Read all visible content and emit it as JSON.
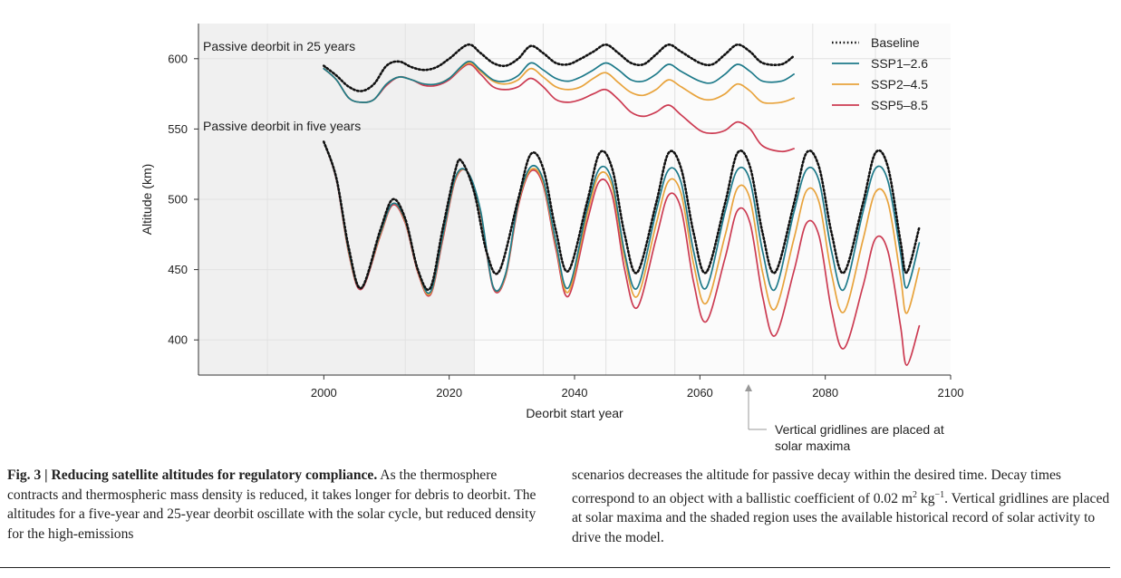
{
  "chart_data": {
    "type": "line",
    "xlabel": "Deorbit start year",
    "ylabel": "Altitude (km)",
    "xlim": [
      1980,
      2100
    ],
    "ylim": [
      375,
      625
    ],
    "xticks": [
      2000,
      2020,
      2040,
      2060,
      2080,
      2100
    ],
    "yticks": [
      400,
      450,
      500,
      550,
      600
    ],
    "shaded_region": [
      1980,
      2024
    ],
    "vertical_gridlines_at": [
      1991,
      2013,
      2024,
      2035,
      2045,
      2056,
      2067,
      2078,
      2088
    ],
    "legend_position": "top-right",
    "annotations": {
      "upper": "Passive deorbit in 25 years",
      "lower": "Passive deorbit in five years",
      "arrow_note_line1": "Vertical gridlines are placed at",
      "arrow_note_line2": "solar maxima"
    },
    "series": [
      {
        "name": "Baseline",
        "color": "#111111",
        "dashed": true,
        "five_year": {
          "x": [
            2000,
            2002,
            2004,
            2006,
            2009,
            2011,
            2013,
            2015,
            2017,
            2019,
            2021,
            2022,
            2024,
            2026,
            2028,
            2031,
            2033,
            2035,
            2037,
            2039,
            2042,
            2044,
            2046,
            2048,
            2050,
            2053,
            2055,
            2057,
            2059,
            2061,
            2064,
            2066,
            2068,
            2070,
            2072,
            2075,
            2077,
            2079,
            2081,
            2083,
            2086,
            2088,
            2090,
            2092,
            2093,
            2095
          ],
          "y": [
            541,
            515,
            465,
            437,
            478,
            500,
            486,
            450,
            437,
            480,
            521,
            527,
            505,
            462,
            449,
            500,
            532,
            522,
            478,
            449,
            498,
            533,
            522,
            475,
            448,
            497,
            533,
            522,
            476,
            448,
            497,
            533,
            523,
            476,
            448,
            497,
            533,
            523,
            476,
            448,
            497,
            533,
            523,
            470,
            448,
            480
          ]
        },
        "twentyfive_year": {
          "x": [
            2000,
            2002,
            2004,
            2006,
            2008,
            2010,
            2012,
            2014,
            2016,
            2018,
            2020,
            2023,
            2025,
            2027,
            2029,
            2031,
            2033,
            2035,
            2037,
            2039,
            2041,
            2043,
            2045,
            2047,
            2049,
            2051,
            2053,
            2055,
            2057,
            2060,
            2062,
            2064,
            2066,
            2068,
            2070,
            2073,
            2075
          ],
          "y": [
            595,
            588,
            580,
            577,
            582,
            595,
            598,
            594,
            592,
            594,
            600,
            610,
            604,
            597,
            595,
            600,
            609,
            604,
            597,
            596,
            600,
            605,
            610,
            604,
            597,
            596,
            603,
            610,
            605,
            597,
            596,
            603,
            610,
            605,
            597,
            596,
            602
          ]
        }
      },
      {
        "name": "SSP1–2.6",
        "color": "#1e7a8a",
        "five_year": {
          "x": [
            2000,
            2002,
            2004,
            2006,
            2009,
            2011,
            2013,
            2015,
            2017,
            2019,
            2021,
            2023,
            2025,
            2027,
            2029,
            2031,
            2033,
            2035,
            2037,
            2039,
            2042,
            2044,
            2046,
            2048,
            2050,
            2053,
            2055,
            2057,
            2059,
            2061,
            2064,
            2066,
            2068,
            2070,
            2072,
            2075,
            2077,
            2079,
            2081,
            2083,
            2086,
            2088,
            2090,
            2092,
            2093,
            2095
          ],
          "y": [
            541,
            515,
            463,
            437,
            476,
            497,
            485,
            450,
            434,
            475,
            516,
            519,
            492,
            438,
            447,
            498,
            523,
            514,
            470,
            437,
            493,
            522,
            513,
            462,
            437,
            491,
            521,
            512,
            463,
            437,
            491,
            521,
            513,
            463,
            436,
            491,
            521,
            513,
            463,
            436,
            491,
            522,
            513,
            462,
            437,
            469
          ]
        },
        "twentyfive_year": {
          "x": [
            2000,
            2002,
            2004,
            2006,
            2008,
            2010,
            2012,
            2014,
            2016,
            2018,
            2020,
            2023,
            2025,
            2027,
            2029,
            2031,
            2033,
            2035,
            2037,
            2039,
            2041,
            2043,
            2045,
            2047,
            2049,
            2051,
            2053,
            2055,
            2057,
            2060,
            2062,
            2064,
            2066,
            2068,
            2070,
            2073,
            2075
          ],
          "y": [
            593,
            585,
            572,
            569,
            571,
            582,
            587,
            585,
            582,
            582,
            586,
            598,
            592,
            585,
            584,
            588,
            597,
            592,
            586,
            584,
            587,
            592,
            597,
            592,
            585,
            584,
            589,
            596,
            591,
            584,
            583,
            589,
            596,
            591,
            584,
            584,
            589
          ]
        }
      },
      {
        "name": "SSP2–4.5",
        "color": "#e8a33c",
        "five_year": {
          "x": [
            2000,
            2002,
            2004,
            2006,
            2009,
            2011,
            2013,
            2015,
            2017,
            2019,
            2021,
            2023,
            2025,
            2027,
            2029,
            2031,
            2033,
            2035,
            2037,
            2039,
            2042,
            2044,
            2046,
            2048,
            2050,
            2053,
            2055,
            2057,
            2059,
            2061,
            2064,
            2066,
            2068,
            2070,
            2072,
            2075,
            2077,
            2079,
            2081,
            2083,
            2086,
            2088,
            2090,
            2092,
            2093,
            2095
          ],
          "y": [
            541,
            515,
            462,
            437,
            475,
            497,
            484,
            449,
            433,
            474,
            515,
            519,
            491,
            438,
            446,
            497,
            521,
            512,
            468,
            434,
            489,
            518,
            509,
            458,
            431,
            482,
            513,
            504,
            454,
            426,
            474,
            508,
            500,
            448,
            422,
            472,
            506,
            498,
            447,
            420,
            471,
            505,
            498,
            445,
            419,
            451
          ]
        },
        "twentyfive_year": {
          "x": [
            2000,
            2002,
            2004,
            2006,
            2008,
            2010,
            2012,
            2014,
            2016,
            2018,
            2020,
            2023,
            2025,
            2027,
            2029,
            2031,
            2033,
            2035,
            2037,
            2039,
            2041,
            2043,
            2045,
            2047,
            2049,
            2051,
            2053,
            2055,
            2057,
            2060,
            2062,
            2064,
            2066,
            2068,
            2070,
            2073,
            2075
          ],
          "y": [
            593,
            585,
            572,
            569,
            571,
            582,
            587,
            585,
            582,
            582,
            586,
            597,
            591,
            584,
            582,
            585,
            593,
            587,
            580,
            578,
            580,
            586,
            590,
            583,
            576,
            574,
            578,
            585,
            580,
            572,
            571,
            575,
            582,
            577,
            569,
            569,
            572
          ]
        }
      },
      {
        "name": "SSP5–8.5",
        "color": "#cc3b52",
        "five_year": {
          "x": [
            2000,
            2002,
            2004,
            2006,
            2009,
            2011,
            2013,
            2015,
            2017,
            2019,
            2021,
            2023,
            2025,
            2027,
            2029,
            2031,
            2033,
            2035,
            2037,
            2039,
            2042,
            2044,
            2046,
            2048,
            2050,
            2053,
            2055,
            2057,
            2059,
            2061,
            2064,
            2066,
            2068,
            2070,
            2072,
            2075,
            2077,
            2079,
            2081,
            2083,
            2086,
            2088,
            2090,
            2092,
            2093,
            2095
          ],
          "y": [
            541,
            514,
            461,
            436,
            474,
            496,
            483,
            448,
            432,
            472,
            514,
            519,
            490,
            437,
            445,
            495,
            520,
            510,
            465,
            431,
            484,
            513,
            503,
            450,
            423,
            472,
            503,
            493,
            441,
            413,
            458,
            492,
            483,
            431,
            403,
            449,
            483,
            474,
            421,
            394,
            438,
            472,
            463,
            410,
            382,
            410
          ]
        },
        "twentyfive_year": {
          "x": [
            2000,
            2002,
            2004,
            2006,
            2008,
            2010,
            2012,
            2014,
            2016,
            2018,
            2020,
            2023,
            2025,
            2027,
            2029,
            2031,
            2033,
            2035,
            2037,
            2039,
            2041,
            2043,
            2045,
            2047,
            2049,
            2051,
            2053,
            2055,
            2057,
            2060,
            2062,
            2064,
            2066,
            2068,
            2070,
            2073,
            2075
          ],
          "y": [
            593,
            585,
            572,
            569,
            571,
            581,
            587,
            585,
            581,
            581,
            585,
            596,
            589,
            580,
            578,
            580,
            586,
            580,
            571,
            569,
            571,
            575,
            578,
            571,
            562,
            559,
            562,
            567,
            560,
            549,
            547,
            549,
            555,
            550,
            538,
            534,
            536
          ]
        }
      }
    ]
  },
  "caption": {
    "fig_label": "Fig. 3 | ",
    "title": "Reducing satellite altitudes for regulatory compliance.",
    "text_left": " As the thermosphere contracts and thermospheric mass density is reduced, it takes longer for debris to deorbit. The altitudes for a five-year and 25-year deorbit oscillate with the solar cycle, but reduced density for the high-emissions",
    "text_right_a": "scenarios decreases the altitude for passive decay within the desired time. Decay times correspond to an object with a ballistic coefficient of 0.02 m",
    "sup_2": "2",
    "text_right_b": " kg",
    "sup_minus1": "−1",
    "text_right_c": ". Vertical gridlines are placed at solar maxima and the shaded region uses the available historical record of solar activity to drive the model."
  }
}
